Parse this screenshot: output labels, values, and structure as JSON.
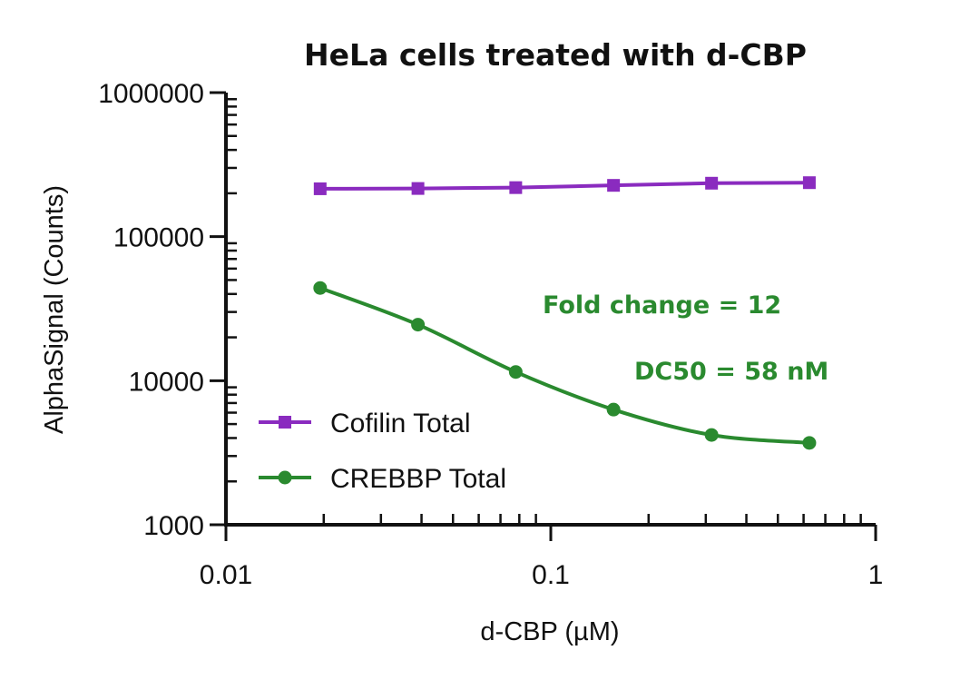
{
  "chart_data": {
    "type": "line",
    "title": "HeLa cells treated with d-CBP",
    "xlabel": "d-CBP (µM)",
    "ylabel": "AlphaSignal (Counts)",
    "xscale": "log",
    "yscale": "log",
    "xlim": [
      0.01,
      1
    ],
    "ylim": [
      1000,
      1000000
    ],
    "x_ticks": [
      {
        "value": 0.01,
        "label": "0.01"
      },
      {
        "value": 0.1,
        "label": "0.1"
      },
      {
        "value": 1,
        "label": "1"
      }
    ],
    "y_ticks": [
      {
        "value": 1000,
        "label": "1000"
      },
      {
        "value": 10000,
        "label": "10000"
      },
      {
        "value": 100000,
        "label": "100000"
      },
      {
        "value": 1000000,
        "label": "1000000"
      }
    ],
    "legend_position": "lower-left",
    "series": [
      {
        "name": "Cofilin Total",
        "color": "#8a2bbf",
        "marker": "square",
        "x": [
          0.0195,
          0.039,
          0.078,
          0.156,
          0.3125,
          0.625
        ],
        "values": [
          215000,
          216000,
          219000,
          227000,
          235000,
          237000
        ]
      },
      {
        "name": "CREBBP Total",
        "color": "#2a8a2f",
        "marker": "circle",
        "x": [
          0.0195,
          0.039,
          0.078,
          0.156,
          0.3125,
          0.625
        ],
        "values": [
          44000,
          24500,
          11500,
          6300,
          4200,
          3700
        ]
      }
    ],
    "annotations": [
      {
        "text": "Fold change = 12",
        "color": "#2a8a2f",
        "x": 0.22,
        "y": 34000
      },
      {
        "text": "DC50 = 58 nM",
        "color": "#2a8a2f",
        "x": 0.36,
        "y": 11800
      }
    ]
  }
}
